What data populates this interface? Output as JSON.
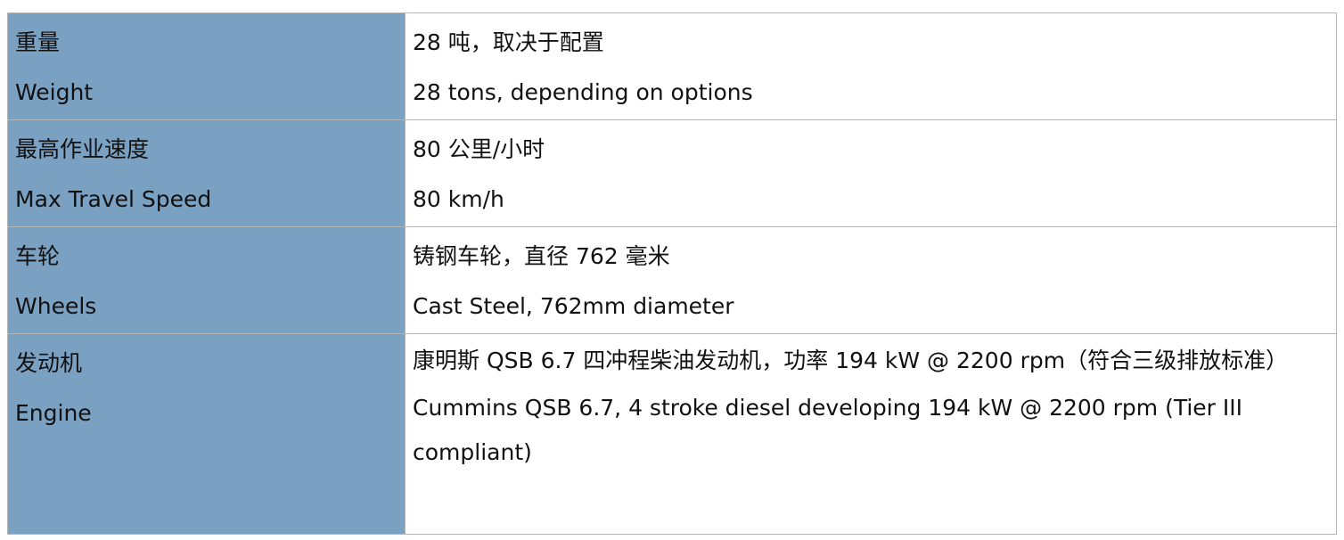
{
  "rows": [
    {
      "label_cn": "重量",
      "label_en": "Weight",
      "value_cn": "28 吨，取决于配置",
      "value_en": "28 tons, depending on options"
    },
    {
      "label_cn": "最高作业速度",
      "label_en": "Max Travel Speed",
      "value_cn": "80 公里/小时",
      "value_en": "80 km/h"
    },
    {
      "label_cn": "车轮",
      "label_en": "Wheels",
      "value_cn": "铸钢车轮，直径 762 毫米",
      "value_en": "Cast Steel, 762mm diameter"
    },
    {
      "label_cn": "发动机",
      "label_en": "Engine",
      "value_cn": "康明斯 QSB 6.7 四冲程柴油发动机，功率 194 kW @ 2200 rpm（符合三级排放标准）",
      "value_en": "Cummins QSB 6.7, 4 stroke diesel developing 194 kW @ 2200 rpm (Tier III compliant)"
    }
  ],
  "colors": {
    "label_bg": "#7aa0c2",
    "border": "#b4b4b4"
  }
}
